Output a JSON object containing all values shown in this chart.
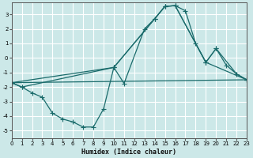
{
  "xlabel": "Humidex (Indice chaleur)",
  "xlim": [
    0,
    23
  ],
  "ylim": [
    -5.5,
    3.8
  ],
  "yticks": [
    -5,
    -4,
    -3,
    -2,
    -1,
    0,
    1,
    2,
    3
  ],
  "xticks": [
    0,
    1,
    2,
    3,
    4,
    5,
    6,
    7,
    8,
    9,
    10,
    11,
    12,
    13,
    14,
    15,
    16,
    17,
    18,
    19,
    20,
    21,
    22,
    23
  ],
  "background_color": "#cce8e8",
  "grid_color": "#ffffff",
  "line_color": "#1a6b6b",
  "line1_x": [
    0,
    1,
    2,
    3,
    4,
    5,
    6,
    7,
    8,
    9,
    10,
    11,
    13,
    14,
    15,
    16,
    17,
    18,
    19,
    20,
    21,
    22,
    23
  ],
  "line1_y": [
    -1.7,
    -2.0,
    -2.4,
    -2.7,
    -3.8,
    -4.2,
    -4.4,
    -4.75,
    -4.75,
    -3.5,
    -0.65,
    -1.75,
    2.0,
    2.7,
    3.55,
    3.6,
    3.25,
    1.0,
    -0.3,
    0.65,
    -0.5,
    -1.1,
    -1.5
  ],
  "line2_x": [
    0,
    1,
    10,
    14,
    15,
    16,
    19,
    20,
    22,
    23
  ],
  "line2_y": [
    -1.7,
    -2.0,
    -0.65,
    2.7,
    3.55,
    3.6,
    -0.3,
    0.65,
    -1.1,
    -1.5
  ],
  "line3_x": [
    0,
    23
  ],
  "line3_y": [
    -1.7,
    -1.5
  ],
  "line4_x": [
    0,
    10,
    14,
    15,
    16,
    19,
    23
  ],
  "line4_y": [
    -1.7,
    -0.65,
    2.7,
    3.55,
    3.6,
    -0.3,
    -1.5
  ]
}
